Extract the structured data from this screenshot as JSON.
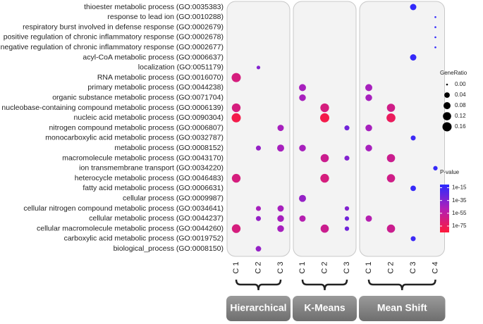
{
  "chart_data": {
    "type": "dotplot",
    "categories": [
      "thioester metabolic process (GO:0035383)",
      "response to lead ion (GO:0010288)",
      "respiratory burst involved in defense response (GO:0002679)",
      "positive regulation of chronic inflammatory response (GO:0002678)",
      "negative regulation of chronic inflammatory response (GO:0002677)",
      "acyl-CoA metabolic process (GO:0006637)",
      "localization (GO:0051179)",
      "RNA metabolic process (GO:0016070)",
      "primary metabolic process (GO:0044238)",
      "organic substance metabolic process (GO:0071704)",
      "nucleobase-containing compound metabolic process (GO:0006139)",
      "nucleic acid metabolic process (GO:0090304)",
      "nitrogen compound metabolic process (GO:0006807)",
      "monocarboxylic acid metabolic process (GO:0032787)",
      "metabolic process (GO:0008152)",
      "macromolecule metabolic process (GO:0043170)",
      "ion transmembrane transport (GO:0034220)",
      "heterocycle metabolic process (GO:0046483)",
      "fatty acid metabolic process (GO:0006631)",
      "cellular process (GO:0009987)",
      "cellular nitrogen compound metabolic process (GO:0034641)",
      "cellular metabolic process (GO:0044237)",
      "cellular macromolecule metabolic process (GO:0044260)",
      "carboxylic acid metabolic process (GO:0019752)",
      "biological_process (GO:0008150)"
    ],
    "facets": [
      {
        "name": "Hierarchical",
        "columns": [
          "C 1",
          "C 2",
          "C 3"
        ]
      },
      {
        "name": "K-Means",
        "columns": [
          "C 1",
          "C 2",
          "C 3"
        ]
      },
      {
        "name": "Mean Shift",
        "columns": [
          "C 1",
          "C 2",
          "C 3",
          "C 4"
        ]
      }
    ],
    "points": [
      {
        "facet": 2,
        "column": 2,
        "category": 0,
        "gene_ratio": 0.06,
        "p_value": 1e-12
      },
      {
        "facet": 2,
        "column": 3,
        "category": 1,
        "gene_ratio": 0.0,
        "p_value": 1e-12
      },
      {
        "facet": 2,
        "column": 3,
        "category": 2,
        "gene_ratio": 0.0,
        "p_value": 1e-12
      },
      {
        "facet": 2,
        "column": 3,
        "category": 3,
        "gene_ratio": 0.0,
        "p_value": 1e-12
      },
      {
        "facet": 2,
        "column": 3,
        "category": 4,
        "gene_ratio": 0.0,
        "p_value": 1e-12
      },
      {
        "facet": 2,
        "column": 2,
        "category": 5,
        "gene_ratio": 0.06,
        "p_value": 1e-13
      },
      {
        "facet": 0,
        "column": 1,
        "category": 6,
        "gene_ratio": 0.01,
        "p_value": 1e-35
      },
      {
        "facet": 0,
        "column": 0,
        "category": 7,
        "gene_ratio": 0.16,
        "p_value": 1e-65
      },
      {
        "facet": 1,
        "column": 0,
        "category": 8,
        "gene_ratio": 0.08,
        "p_value": 1e-45
      },
      {
        "facet": 2,
        "column": 0,
        "category": 8,
        "gene_ratio": 0.08,
        "p_value": 1e-45
      },
      {
        "facet": 1,
        "column": 0,
        "category": 9,
        "gene_ratio": 0.07,
        "p_value": 1e-45
      },
      {
        "facet": 2,
        "column": 0,
        "category": 9,
        "gene_ratio": 0.07,
        "p_value": 1e-45
      },
      {
        "facet": 0,
        "column": 0,
        "category": 10,
        "gene_ratio": 0.14,
        "p_value": 1e-65
      },
      {
        "facet": 1,
        "column": 1,
        "category": 10,
        "gene_ratio": 0.14,
        "p_value": 1e-65
      },
      {
        "facet": 2,
        "column": 1,
        "category": 10,
        "gene_ratio": 0.12,
        "p_value": 1e-62
      },
      {
        "facet": 0,
        "column": 0,
        "category": 11,
        "gene_ratio": 0.16,
        "p_value": 1e-80
      },
      {
        "facet": 1,
        "column": 1,
        "category": 11,
        "gene_ratio": 0.16,
        "p_value": 1e-80
      },
      {
        "facet": 2,
        "column": 1,
        "category": 11,
        "gene_ratio": 0.15,
        "p_value": 1e-75
      },
      {
        "facet": 0,
        "column": 2,
        "category": 12,
        "gene_ratio": 0.06,
        "p_value": 1e-45
      },
      {
        "facet": 1,
        "column": 2,
        "category": 12,
        "gene_ratio": 0.03,
        "p_value": 1e-30
      },
      {
        "facet": 2,
        "column": 0,
        "category": 12,
        "gene_ratio": 0.07,
        "p_value": 1e-45
      },
      {
        "facet": 2,
        "column": 2,
        "category": 13,
        "gene_ratio": 0.03,
        "p_value": 1e-15
      },
      {
        "facet": 0,
        "column": 1,
        "category": 14,
        "gene_ratio": 0.03,
        "p_value": 1e-40
      },
      {
        "facet": 0,
        "column": 2,
        "category": 14,
        "gene_ratio": 0.08,
        "p_value": 1e-45
      },
      {
        "facet": 1,
        "column": 0,
        "category": 14,
        "gene_ratio": 0.07,
        "p_value": 1e-45
      },
      {
        "facet": 2,
        "column": 0,
        "category": 14,
        "gene_ratio": 0.07,
        "p_value": 1e-45
      },
      {
        "facet": 1,
        "column": 1,
        "category": 15,
        "gene_ratio": 0.12,
        "p_value": 1e-60
      },
      {
        "facet": 1,
        "column": 2,
        "category": 15,
        "gene_ratio": 0.03,
        "p_value": 1e-35
      },
      {
        "facet": 2,
        "column": 1,
        "category": 15,
        "gene_ratio": 0.12,
        "p_value": 1e-60
      },
      {
        "facet": 2,
        "column": 3,
        "category": 16,
        "gene_ratio": 0.02,
        "p_value": 1e-13
      },
      {
        "facet": 0,
        "column": 0,
        "category": 17,
        "gene_ratio": 0.14,
        "p_value": 1e-65
      },
      {
        "facet": 1,
        "column": 1,
        "category": 17,
        "gene_ratio": 0.14,
        "p_value": 1e-65
      },
      {
        "facet": 2,
        "column": 1,
        "category": 17,
        "gene_ratio": 0.12,
        "p_value": 1e-62
      },
      {
        "facet": 2,
        "column": 2,
        "category": 18,
        "gene_ratio": 0.04,
        "p_value": 1e-13
      },
      {
        "facet": 1,
        "column": 0,
        "category": 19,
        "gene_ratio": 0.08,
        "p_value": 1e-40
      },
      {
        "facet": 0,
        "column": 1,
        "category": 20,
        "gene_ratio": 0.03,
        "p_value": 1e-45
      },
      {
        "facet": 0,
        "column": 2,
        "category": 20,
        "gene_ratio": 0.06,
        "p_value": 1e-45
      },
      {
        "facet": 1,
        "column": 2,
        "category": 20,
        "gene_ratio": 0.02,
        "p_value": 1e-35
      },
      {
        "facet": 0,
        "column": 1,
        "category": 21,
        "gene_ratio": 0.03,
        "p_value": 1e-40
      },
      {
        "facet": 0,
        "column": 2,
        "category": 21,
        "gene_ratio": 0.07,
        "p_value": 1e-45
      },
      {
        "facet": 1,
        "column": 0,
        "category": 21,
        "gene_ratio": 0.06,
        "p_value": 1e-50
      },
      {
        "facet": 1,
        "column": 2,
        "category": 21,
        "gene_ratio": 0.02,
        "p_value": 1e-30
      },
      {
        "facet": 2,
        "column": 0,
        "category": 21,
        "gene_ratio": 0.06,
        "p_value": 1e-50
      },
      {
        "facet": 0,
        "column": 0,
        "category": 22,
        "gene_ratio": 0.14,
        "p_value": 1e-65
      },
      {
        "facet": 0,
        "column": 2,
        "category": 22,
        "gene_ratio": 0.07,
        "p_value": 1e-45
      },
      {
        "facet": 1,
        "column": 1,
        "category": 22,
        "gene_ratio": 0.12,
        "p_value": 1e-60
      },
      {
        "facet": 1,
        "column": 2,
        "category": 22,
        "gene_ratio": 0.02,
        "p_value": 1e-30
      },
      {
        "facet": 2,
        "column": 1,
        "category": 22,
        "gene_ratio": 0.12,
        "p_value": 1e-60
      },
      {
        "facet": 2,
        "column": 2,
        "category": 23,
        "gene_ratio": 0.03,
        "p_value": 1e-15
      },
      {
        "facet": 0,
        "column": 1,
        "category": 24,
        "gene_ratio": 0.04,
        "p_value": 1e-40
      }
    ],
    "size_title": "GeneRatio",
    "size_ticks": [
      {
        "value": 0,
        "label": "0.00"
      },
      0.04,
      0.08,
      0.12,
      0.16
    ],
    "color_title": "P-value",
    "color_ticks": [
      1e-15,
      1e-35,
      1e-55,
      1e-75
    ],
    "color_lim": [
      1e-85,
      1e-10
    ],
    "color_scale": [
      "#2a2aff",
      "#b01fb8",
      "#ff1a3a"
    ],
    "log_color": true
  }
}
